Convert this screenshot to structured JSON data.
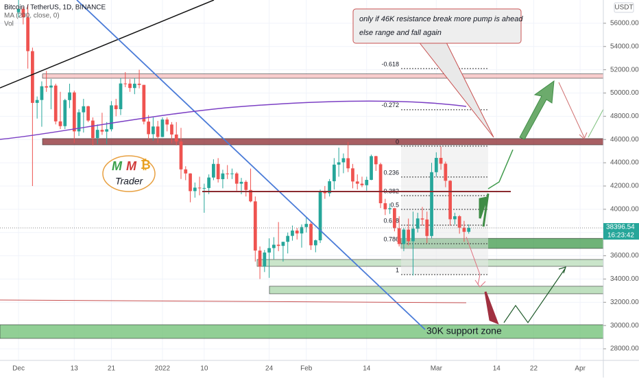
{
  "header": [
    "Bitcoin / TetherUS, 1D, BINANCE",
    "MA (200, close, 0)",
    "Vol"
  ],
  "chart_data": {
    "type": "candlestick",
    "x": [
      "2021-12-01",
      "2021-12-02",
      "2021-12-03",
      "2021-12-04",
      "2021-12-05",
      "2021-12-06",
      "2021-12-07",
      "2021-12-08",
      "2021-12-09",
      "2021-12-10",
      "2021-12-11",
      "2021-12-12",
      "2021-12-13",
      "2021-12-14",
      "2021-12-15",
      "2021-12-16",
      "2021-12-17",
      "2021-12-18",
      "2021-12-19",
      "2021-12-20",
      "2021-12-21",
      "2021-12-22",
      "2021-12-23",
      "2021-12-24",
      "2021-12-25",
      "2021-12-26",
      "2021-12-27",
      "2021-12-28",
      "2021-12-29",
      "2021-12-30",
      "2021-12-31",
      "2022-01-01",
      "2022-01-02",
      "2022-01-03",
      "2022-01-04",
      "2022-01-05",
      "2022-01-06",
      "2022-01-07",
      "2022-01-08",
      "2022-01-09",
      "2022-01-10",
      "2022-01-11",
      "2022-01-12",
      "2022-01-13",
      "2022-01-14",
      "2022-01-15",
      "2022-01-16",
      "2022-01-17",
      "2022-01-18",
      "2022-01-19",
      "2022-01-20",
      "2022-01-21",
      "2022-01-22",
      "2022-01-23",
      "2022-01-24",
      "2022-01-25",
      "2022-01-26",
      "2022-01-27",
      "2022-01-28",
      "2022-01-29",
      "2022-01-30",
      "2022-01-31",
      "2022-02-01",
      "2022-02-02",
      "2022-02-03",
      "2022-02-04",
      "2022-02-05",
      "2022-02-06",
      "2022-02-07",
      "2022-02-08",
      "2022-02-09",
      "2022-02-10",
      "2022-02-11",
      "2022-02-12",
      "2022-02-13",
      "2022-02-14",
      "2022-02-15",
      "2022-02-16",
      "2022-02-17",
      "2022-02-18",
      "2022-02-19",
      "2022-02-20",
      "2022-02-21",
      "2022-02-22",
      "2022-02-23",
      "2022-02-24",
      "2022-02-25",
      "2022-02-26",
      "2022-02-27",
      "2022-02-28",
      "2022-03-01",
      "2022-03-02",
      "2022-03-03",
      "2022-03-04",
      "2022-03-05",
      "2022-03-06",
      "2022-03-07",
      "2022-03-08"
    ],
    "open": [
      56950,
      57230,
      56510,
      53600,
      49150,
      49400,
      50580,
      50470,
      50640,
      47560,
      47150,
      49390,
      50050,
      46700,
      48340,
      48860,
      47630,
      46130,
      46830,
      46680,
      46880,
      48940,
      48610,
      50820,
      50810,
      50430,
      50800,
      50700,
      47540,
      46460,
      47120,
      46220,
      47720,
      47290,
      46430,
      45830,
      43430,
      43080,
      41560,
      41860,
      41820,
      41830,
      42730,
      43900,
      42590,
      43080,
      43070,
      43080,
      42200,
      42360,
      41660,
      40680,
      36450,
      35070,
      36280,
      36660,
      36950,
      36850,
      37200,
      37710,
      38170,
      37920,
      38470,
      38740,
      36900,
      37330,
      41570,
      41380,
      42410,
      43840,
      44040,
      44390,
      43520,
      42390,
      42200,
      42070,
      42530,
      44570,
      43870,
      40520,
      40000,
      40090,
      38370,
      37010,
      38250,
      37250,
      38330,
      39210,
      39120,
      37700,
      43190,
      44420,
      43920,
      42450,
      39140,
      39400,
      38420,
      38060
    ],
    "high": [
      59100,
      57400,
      57600,
      53900,
      49700,
      51000,
      51900,
      51200,
      50800,
      50100,
      49500,
      50800,
      50200,
      48600,
      49500,
      48900,
      47900,
      47300,
      48300,
      47500,
      49300,
      49500,
      51300,
      51800,
      51200,
      51300,
      52000,
      50700,
      48100,
      47900,
      47600,
      47900,
      47900,
      47500,
      47500,
      47000,
      43700,
      43100,
      42300,
      42800,
      42200,
      43000,
      44300,
      44400,
      43400,
      43800,
      43500,
      43200,
      42700,
      42500,
      43500,
      41100,
      36800,
      36500,
      37500,
      37600,
      38900,
      37200,
      38000,
      38600,
      38400,
      38700,
      39300,
      38900,
      37400,
      41700,
      42000,
      42600,
      44400,
      45300,
      44800,
      45800,
      43900,
      43000,
      42800,
      42800,
      44700,
      44600,
      44000,
      40900,
      40500,
      40100,
      39400,
      38400,
      39200,
      39800,
      39700,
      40200,
      39800,
      44000,
      44900,
      45400,
      44100,
      42500,
      39700,
      39500,
      39000,
      38700
    ],
    "low": [
      56500,
      55900,
      52100,
      42000,
      47800,
      47100,
      50100,
      48600,
      47300,
      46900,
      46900,
      48700,
      45700,
      46300,
      46600,
      47500,
      45500,
      45600,
      46400,
      45600,
      46700,
      48000,
      48100,
      50500,
      50100,
      49900,
      50400,
      47300,
      46000,
      45900,
      45700,
      46200,
      46700,
      45700,
      45500,
      42600,
      42500,
      40600,
      41000,
      41200,
      39700,
      41300,
      42500,
      42300,
      41800,
      42600,
      42600,
      41600,
      41300,
      41100,
      40600,
      35500,
      34000,
      34600,
      34100,
      35700,
      36400,
      35500,
      36200,
      37300,
      37400,
      36700,
      38000,
      36500,
      36300,
      37100,
      40900,
      41100,
      41700,
      42800,
      43100,
      43200,
      41800,
      41700,
      41900,
      41600,
      42500,
      43300,
      40100,
      39500,
      39600,
      38100,
      36800,
      36400,
      36900,
      34300,
      38000,
      38600,
      37100,
      37500,
      42800,
      43400,
      41900,
      38600,
      38700,
      37900,
      37200,
      37900
    ],
    "close": [
      57230,
      56510,
      53600,
      49150,
      49400,
      50580,
      50470,
      50640,
      47560,
      47150,
      49390,
      50050,
      46700,
      48340,
      48860,
      47630,
      46130,
      46830,
      46680,
      46880,
      48940,
      48610,
      50820,
      50810,
      50430,
      50800,
      50700,
      47540,
      46460,
      47120,
      46220,
      47720,
      47290,
      46430,
      45830,
      43430,
      43080,
      41560,
      41860,
      41820,
      41830,
      42730,
      43900,
      42590,
      43080,
      43070,
      43080,
      42200,
      42360,
      41660,
      40680,
      36450,
      35070,
      36280,
      36660,
      36950,
      36850,
      37200,
      37710,
      38170,
      37920,
      38470,
      38740,
      36900,
      37330,
      41570,
      41380,
      42410,
      43840,
      44040,
      44390,
      43520,
      42390,
      42200,
      42070,
      42530,
      44570,
      43870,
      40520,
      40000,
      40090,
      38370,
      37010,
      38250,
      37250,
      38330,
      39210,
      39120,
      37700,
      43190,
      44420,
      43920,
      42450,
      39140,
      39400,
      38420,
      38060,
      38400
    ],
    "up_color": "#26a69a",
    "down_color": "#ef5350",
    "xlim": [
      "2021-11-27",
      "2022-04-06"
    ],
    "xticks": [
      {
        "value": "2021-12-01",
        "label": "Dec"
      },
      {
        "value": "2021-12-13",
        "label": "13"
      },
      {
        "value": "2021-12-21",
        "label": "21"
      },
      {
        "value": "2022-01-01",
        "label": "2022"
      },
      {
        "value": "2022-01-10",
        "label": "10"
      },
      {
        "value": "2022-01-24",
        "label": "24"
      },
      {
        "value": "2022-02-01",
        "label": "Feb"
      },
      {
        "value": "2022-02-14",
        "label": "14"
      },
      {
        "value": "2022-03-01",
        "label": "Mar"
      },
      {
        "value": "2022-03-14",
        "label": "14"
      },
      {
        "value": "2022-03-22",
        "label": "22"
      },
      {
        "value": "2022-04-01",
        "label": "Apr"
      }
    ],
    "ylim": [
      27000,
      58000
    ],
    "yticks": [
      {
        "value": 28000,
        "label": "28000.00"
      },
      {
        "value": 30000,
        "label": "30000.00"
      },
      {
        "value": 32000,
        "label": "32000.00"
      },
      {
        "value": 34000,
        "label": "34000.00"
      },
      {
        "value": 36000,
        "label": "36000.00"
      },
      {
        "value": 38000,
        "label": "38000.00"
      },
      {
        "value": 40000,
        "label": "40000.00"
      },
      {
        "value": 42000,
        "label": "42000.00"
      },
      {
        "value": 44000,
        "label": "44000.00"
      },
      {
        "value": 46000,
        "label": "46000.00"
      },
      {
        "value": 48000,
        "label": "48000.00"
      },
      {
        "value": 50000,
        "label": "50000.00"
      },
      {
        "value": 52000,
        "label": "52000.00"
      },
      {
        "value": 54000,
        "label": "54000.00"
      },
      {
        "value": 56000,
        "label": "56000.00"
      }
    ],
    "currency": "USDT",
    "last_price": 38396.54,
    "countdown": "16:23:42",
    "zones": [
      {
        "low": 51270,
        "high": 51640,
        "color": "#f6bcbc"
      },
      {
        "low": 45540,
        "high": 46080,
        "color": "#8b2a2f"
      },
      {
        "low": 36630,
        "high": 37500,
        "color": "#3f9a4b"
      },
      {
        "low": 35090,
        "high": 35680,
        "color": "#b8dcb8"
      },
      {
        "low": 32730,
        "high": 33380,
        "color": "#a9d5a9"
      },
      {
        "low": 28890,
        "high": 30070,
        "color": "#6cbf72"
      }
    ],
    "fib_levels": [
      {
        "label": "-0.618",
        "value": 52100
      },
      {
        "label": "-0.272",
        "value": 48560
      },
      {
        "label": "0",
        "value": 45430
      },
      {
        "label": "0.236",
        "value": 42770
      },
      {
        "label": "0.382",
        "value": 41170
      },
      {
        "label": "0.5",
        "value": 39990
      },
      {
        "label": "0.618",
        "value": 38630
      },
      {
        "label": "0.786",
        "value": 37040
      },
      {
        "label": "1",
        "value": 34380
      }
    ],
    "annotations": [
      "only if 46K resistance break more pump is ahead",
      "else range and fall again",
      "30K support zone"
    ],
    "logo": {
      "letters": [
        "M",
        "M",
        "₿"
      ],
      "text": "Trader"
    }
  }
}
